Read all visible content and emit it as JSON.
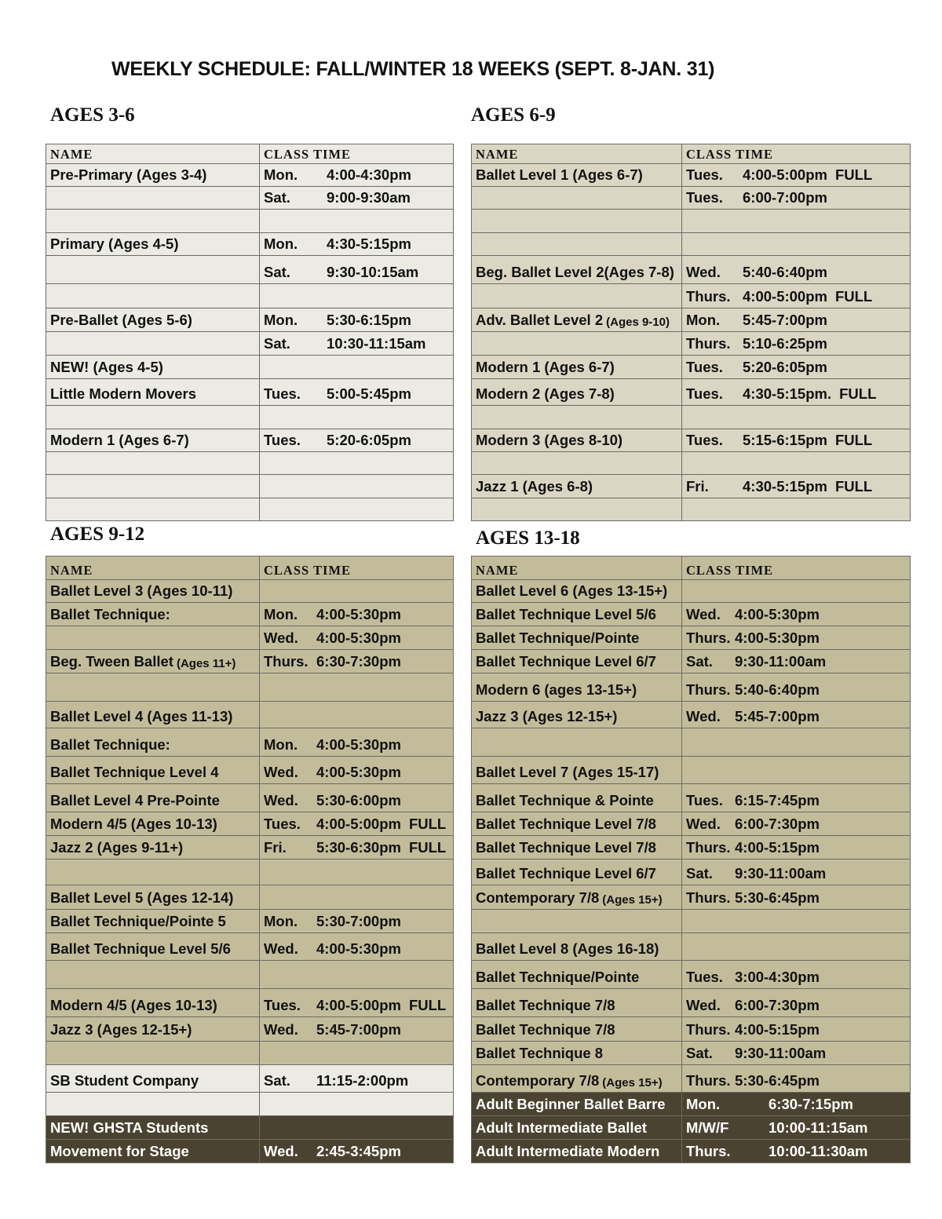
{
  "title": "WEEKLY SCHEDULE: FALL/WINTER 18 WEEKS (SEPT. 8-JAN. 31)",
  "colors": {
    "light": "#ecebe3",
    "medium": "#dad6c3",
    "tan": "#c3bc9b",
    "dark": "#4b4331"
  },
  "tables": [
    {
      "heading": "AGES 3-6",
      "col_name": "NAME",
      "col_time": "CLASS TIME",
      "rows": [
        {
          "name": "Pre-Primary (Ages 3-4)",
          "day": "Mon.",
          "time": "4:00-4:30pm",
          "bg": "l"
        },
        {
          "name": "",
          "day": "Sat.",
          "time": "9:00-9:30am",
          "bg": "l"
        },
        {
          "name": "",
          "day": "",
          "time": "",
          "bg": "l"
        },
        {
          "name": "Primary (Ages 4-5)",
          "day": "Mon.",
          "time": "4:30-5:15pm",
          "bg": "l"
        },
        {
          "name": "",
          "day": "Sat.",
          "time": "9:30-10:15am",
          "bg": "l"
        },
        {
          "name": "",
          "day": "",
          "time": "",
          "bg": "l"
        },
        {
          "name": "Pre-Ballet (Ages 5-6)",
          "day": "Mon.",
          "time": "5:30-6:15pm",
          "bg": "l"
        },
        {
          "name": "",
          "day": "Sat.",
          "time": "10:30-11:15am",
          "bg": "l"
        },
        {
          "name": "NEW! (Ages 4-5)",
          "day": "",
          "time": "",
          "bg": "l"
        },
        {
          "name": "Little Modern Movers",
          "day": "Tues.",
          "time": "5:00-5:45pm",
          "bg": "l"
        },
        {
          "name": "",
          "day": "",
          "time": "",
          "bg": "l"
        },
        {
          "name": "Modern 1 (Ages 6-7)",
          "day": "Tues.",
          "time": "5:20-6:05pm",
          "bg": "l"
        },
        {
          "name": "",
          "day": "",
          "time": "",
          "bg": "l"
        },
        {
          "name": "",
          "day": "",
          "time": "",
          "bg": "l"
        },
        {
          "name": "",
          "day": "",
          "time": "",
          "bg": "l"
        }
      ]
    },
    {
      "heading": "AGES 6-9",
      "col_name": "NAME",
      "col_time": "CLASS TIME",
      "rows": [
        {
          "name": "Ballet Level 1 (Ages 6-7)",
          "day": "Tues.",
          "time": "4:00-5:00pm",
          "note": "FULL",
          "bg": "m"
        },
        {
          "name": "",
          "day": "Tues.",
          "time": "6:00-7:00pm",
          "bg": "m"
        },
        {
          "name": "",
          "day": "",
          "time": "",
          "bg": "m"
        },
        {
          "name": "",
          "day": "",
          "time": "",
          "bg": "m"
        },
        {
          "name": "Beg. Ballet Level 2(Ages 7-8)",
          "day": "Wed.",
          "time": "5:40-6:40pm",
          "bg": "m"
        },
        {
          "name": "",
          "day": "Thurs.",
          "time": "4:00-5:00pm",
          "note": "FULL",
          "bg": "m"
        },
        {
          "name": "Adv. Ballet Level 2",
          "small": "(Ages 9-10)",
          "day": "Mon.",
          "time": "5:45-7:00pm",
          "bg": "m"
        },
        {
          "name": "",
          "day": "Thurs.",
          "time": "5:10-6:25pm",
          "bg": "m"
        },
        {
          "name": "Modern 1 (Ages 6-7)",
          "day": "Tues.",
          "time": "5:20-6:05pm",
          "bg": "m"
        },
        {
          "name": "Modern 2 (Ages 7-8)",
          "day": "Tues.",
          "time": "4:30-5:15pm.",
          "note": "FULL",
          "bg": "m"
        },
        {
          "name": "",
          "day": "",
          "time": "",
          "bg": "m"
        },
        {
          "name": "Modern 3 (Ages 8-10)",
          "day": "Tues.",
          "time": "5:15-6:15pm",
          "note": "FULL",
          "bg": "m"
        },
        {
          "name": "",
          "day": "",
          "time": "",
          "bg": "m"
        },
        {
          "name": "Jazz 1 (Ages 6-8)",
          "day": "Fri.",
          "time": "4:30-5:15pm",
          "note": "FULL",
          "bg": "m"
        },
        {
          "name": "",
          "day": "",
          "time": "",
          "bg": "m"
        }
      ]
    },
    {
      "heading": "AGES 9-12",
      "col_name": "NAME",
      "col_time": "CLASS TIME",
      "rows": [
        {
          "name": "Ballet Level 3 (Ages 10-11)",
          "day": "",
          "time": "",
          "bg": "t"
        },
        {
          "name": "Ballet Technique:",
          "day": "Mon.",
          "time": "4:00-5:30pm",
          "bg": "t"
        },
        {
          "name": "",
          "day": "Wed.",
          "time": "4:00-5:30pm",
          "bg": "t"
        },
        {
          "name": "Beg. Tween Ballet",
          "small": "(Ages 11+)",
          "day": "Thurs.",
          "time": "6:30-7:30pm",
          "bg": "t"
        },
        {
          "name": "",
          "day": "",
          "time": "",
          "bg": "t"
        },
        {
          "name": "Ballet Level 4 (Ages 11-13)",
          "day": "",
          "time": "",
          "bg": "t"
        },
        {
          "name": "Ballet Technique:",
          "day": "Mon.",
          "time": "4:00-5:30pm",
          "bg": "t"
        },
        {
          "name": "Ballet Technique Level 4",
          "day": "Wed.",
          "time": "4:00-5:30pm",
          "bg": "t"
        },
        {
          "name": "Ballet Level 4 Pre-Pointe",
          "day": "Wed.",
          "time": "5:30-6:00pm",
          "bg": "t"
        },
        {
          "name": "Modern 4/5 (Ages 10-13)",
          "day": "Tues.",
          "time": "4:00-5:00pm",
          "note": "FULL",
          "bg": "t"
        },
        {
          "name": "Jazz 2 (Ages 9-11+)",
          "day": "Fri.",
          "time": "5:30-6:30pm",
          "note": "FULL",
          "bg": "t"
        },
        {
          "name": "",
          "day": "",
          "time": "",
          "bg": "t"
        },
        {
          "name": "Ballet Level 5 (Ages 12-14)",
          "day": "",
          "time": "",
          "bg": "t"
        },
        {
          "name": "Ballet Technique/Pointe 5",
          "day": "Mon.",
          "time": "5:30-7:00pm",
          "bg": "t"
        },
        {
          "name": "Ballet Technique Level 5/6",
          "day": "Wed.",
          "time": "4:00-5:30pm",
          "bg": "t"
        },
        {
          "name": "",
          "day": "",
          "time": "",
          "bg": "t"
        },
        {
          "name": "Modern 4/5 (Ages 10-13)",
          "day": "Tues.",
          "time": "4:00-5:00pm",
          "note": "FULL",
          "bg": "t"
        },
        {
          "name": "Jazz 3 (Ages 12-15+)",
          "day": "Wed.",
          "time": "5:45-7:00pm",
          "bg": "t"
        },
        {
          "name": "",
          "day": "",
          "time": "",
          "bg": "t"
        },
        {
          "name": "SB Student Company",
          "day": "Sat.",
          "time": "11:15-2:00pm",
          "bg": "l"
        },
        {
          "name": "",
          "day": "",
          "time": "",
          "bg": "l"
        },
        {
          "name": "NEW! GHSTA Students",
          "day": "",
          "time": "",
          "bg": "d"
        },
        {
          "name": "Movement for Stage",
          "day": "Wed.",
          "time": "2:45-3:45pm",
          "bg": "d"
        }
      ]
    },
    {
      "heading": "AGES 13-18",
      "col_name": "NAME",
      "col_time": "CLASS TIME",
      "rows": [
        {
          "name": "Ballet Level 6 (Ages 13-15+)",
          "day": "",
          "time": "",
          "bg": "t"
        },
        {
          "name": "Ballet Technique Level 5/6",
          "day": "Wed.",
          "time": "4:00-5:30pm",
          "bg": "t"
        },
        {
          "name": "Ballet Technique/Pointe",
          "day": "Thurs.",
          "time": "4:00-5:30pm",
          "bg": "t"
        },
        {
          "name": "Ballet Technique Level 6/7",
          "day": "Sat.",
          "time": "9:30-11:00am",
          "bg": "t"
        },
        {
          "name": "Modern 6 (ages 13-15+)",
          "day": "Thurs.",
          "time": "5:40-6:40pm",
          "bg": "t"
        },
        {
          "name": "Jazz 3 (Ages 12-15+)",
          "day": "Wed.",
          "time": "5:45-7:00pm",
          "bg": "t"
        },
        {
          "name": "",
          "day": "",
          "time": "",
          "bg": "t"
        },
        {
          "name": "Ballet Level 7 (Ages 15-17)",
          "day": "",
          "time": "",
          "bg": "t"
        },
        {
          "name": "Ballet Technique & Pointe",
          "day": "Tues.",
          "time": "6:15-7:45pm",
          "bg": "t"
        },
        {
          "name": "Ballet Technique Level 7/8",
          "day": "Wed.",
          "time": "6:00-7:30pm",
          "bg": "t"
        },
        {
          "name": "Ballet Technique Level 7/8",
          "day": "Thurs.",
          "time": "4:00-5:15pm",
          "bg": "t"
        },
        {
          "name": "Ballet Technique Level 6/7",
          "day": "Sat.",
          "time": "9:30-11:00am",
          "bg": "t"
        },
        {
          "name": "Contemporary 7/8",
          "small": "(Ages 15+)",
          "day": "Thurs.",
          "time": "5:30-6:45pm",
          "bg": "t"
        },
        {
          "name": "",
          "day": "",
          "time": "",
          "bg": "t"
        },
        {
          "name": "Ballet Level 8 (Ages 16-18)",
          "day": "",
          "time": "",
          "bg": "t"
        },
        {
          "name": "Ballet Technique/Pointe",
          "day": "Tues.",
          "time": "3:00-4:30pm",
          "bg": "t"
        },
        {
          "name": "Ballet Technique 7/8",
          "day": "Wed.",
          "time": "6:00-7:30pm",
          "bg": "t"
        },
        {
          "name": "Ballet Technique 7/8",
          "day": "Thurs.",
          "time": "4:00-5:15pm",
          "bg": "t"
        },
        {
          "name": "Ballet Technique 8",
          "day": "Sat.",
          "time": "9:30-11:00am",
          "bg": "t"
        },
        {
          "name": "Contemporary 7/8",
          "small": "(Ages 15+)",
          "day": "Thurs.",
          "time": "5:30-6:45pm",
          "bg": "t"
        },
        {
          "name": "Adult Beginner Ballet Barre",
          "day": "Mon.",
          "time": "6:30-7:15pm",
          "bg": "d"
        },
        {
          "name": "Adult Intermediate Ballet",
          "day": "M/W/F",
          "time": "10:00-11:15am",
          "bg": "d"
        },
        {
          "name": "Adult Intermediate Modern",
          "day": "Thurs.",
          "time": "10:00-11:30am",
          "bg": "d"
        }
      ]
    }
  ]
}
